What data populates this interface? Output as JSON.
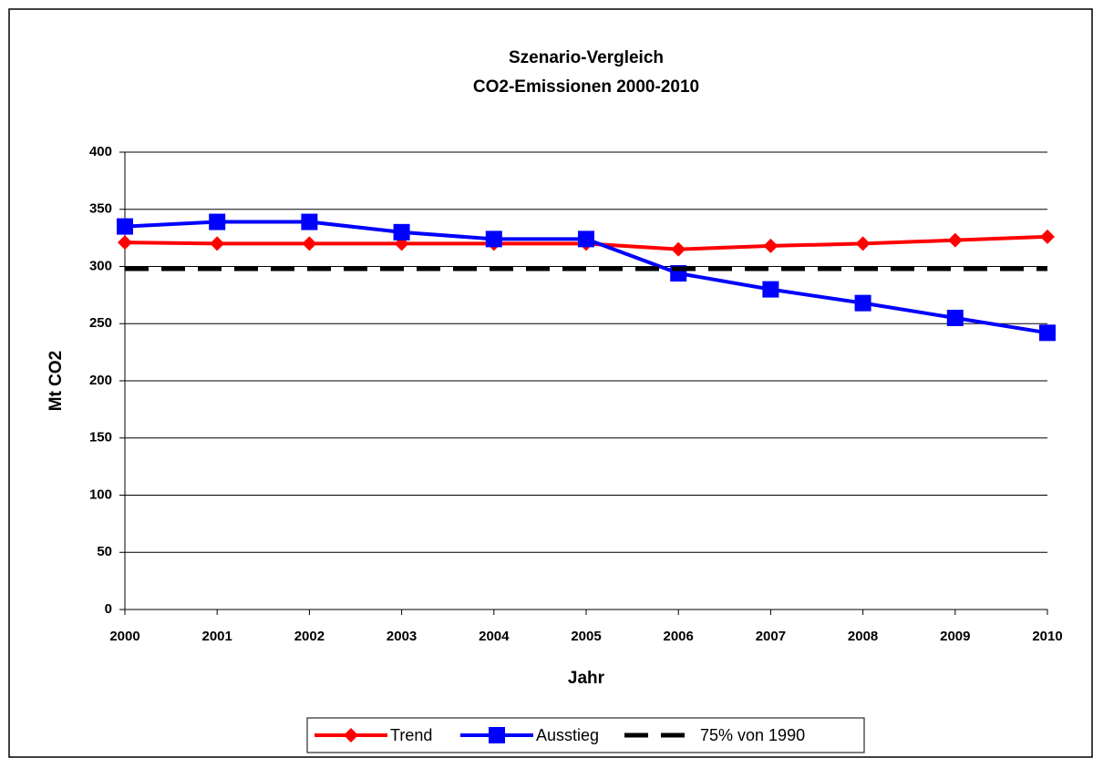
{
  "chart_data": {
    "type": "line",
    "title": [
      "Szenario-Vergleich",
      "CO2-Emissionen 2000-2010"
    ],
    "xlabel": "Jahr",
    "ylabel": "Mt CO2",
    "categories": [
      "2000",
      "2001",
      "2002",
      "2003",
      "2004",
      "2005",
      "2006",
      "2007",
      "2008",
      "2009",
      "2010"
    ],
    "series": [
      {
        "name": "Trend",
        "color": "#ff0000",
        "marker": "diamond",
        "values": [
          321,
          320,
          320,
          320,
          320,
          320,
          315,
          318,
          320,
          323,
          326
        ]
      },
      {
        "name": "Ausstieg",
        "color": "#0000ff",
        "marker": "square",
        "values": [
          335,
          339,
          339,
          330,
          324,
          324,
          294,
          280,
          268,
          255,
          242
        ]
      },
      {
        "name": "75% von 1990",
        "color": "#000000",
        "dash": true,
        "values": [
          298,
          298,
          298,
          298,
          298,
          298,
          298,
          298,
          298,
          298,
          298
        ]
      }
    ],
    "ylim": [
      0,
      400
    ],
    "yticks": [
      0,
      50,
      100,
      150,
      200,
      250,
      300,
      350,
      400
    ],
    "grid": true,
    "legend": "bottom"
  }
}
